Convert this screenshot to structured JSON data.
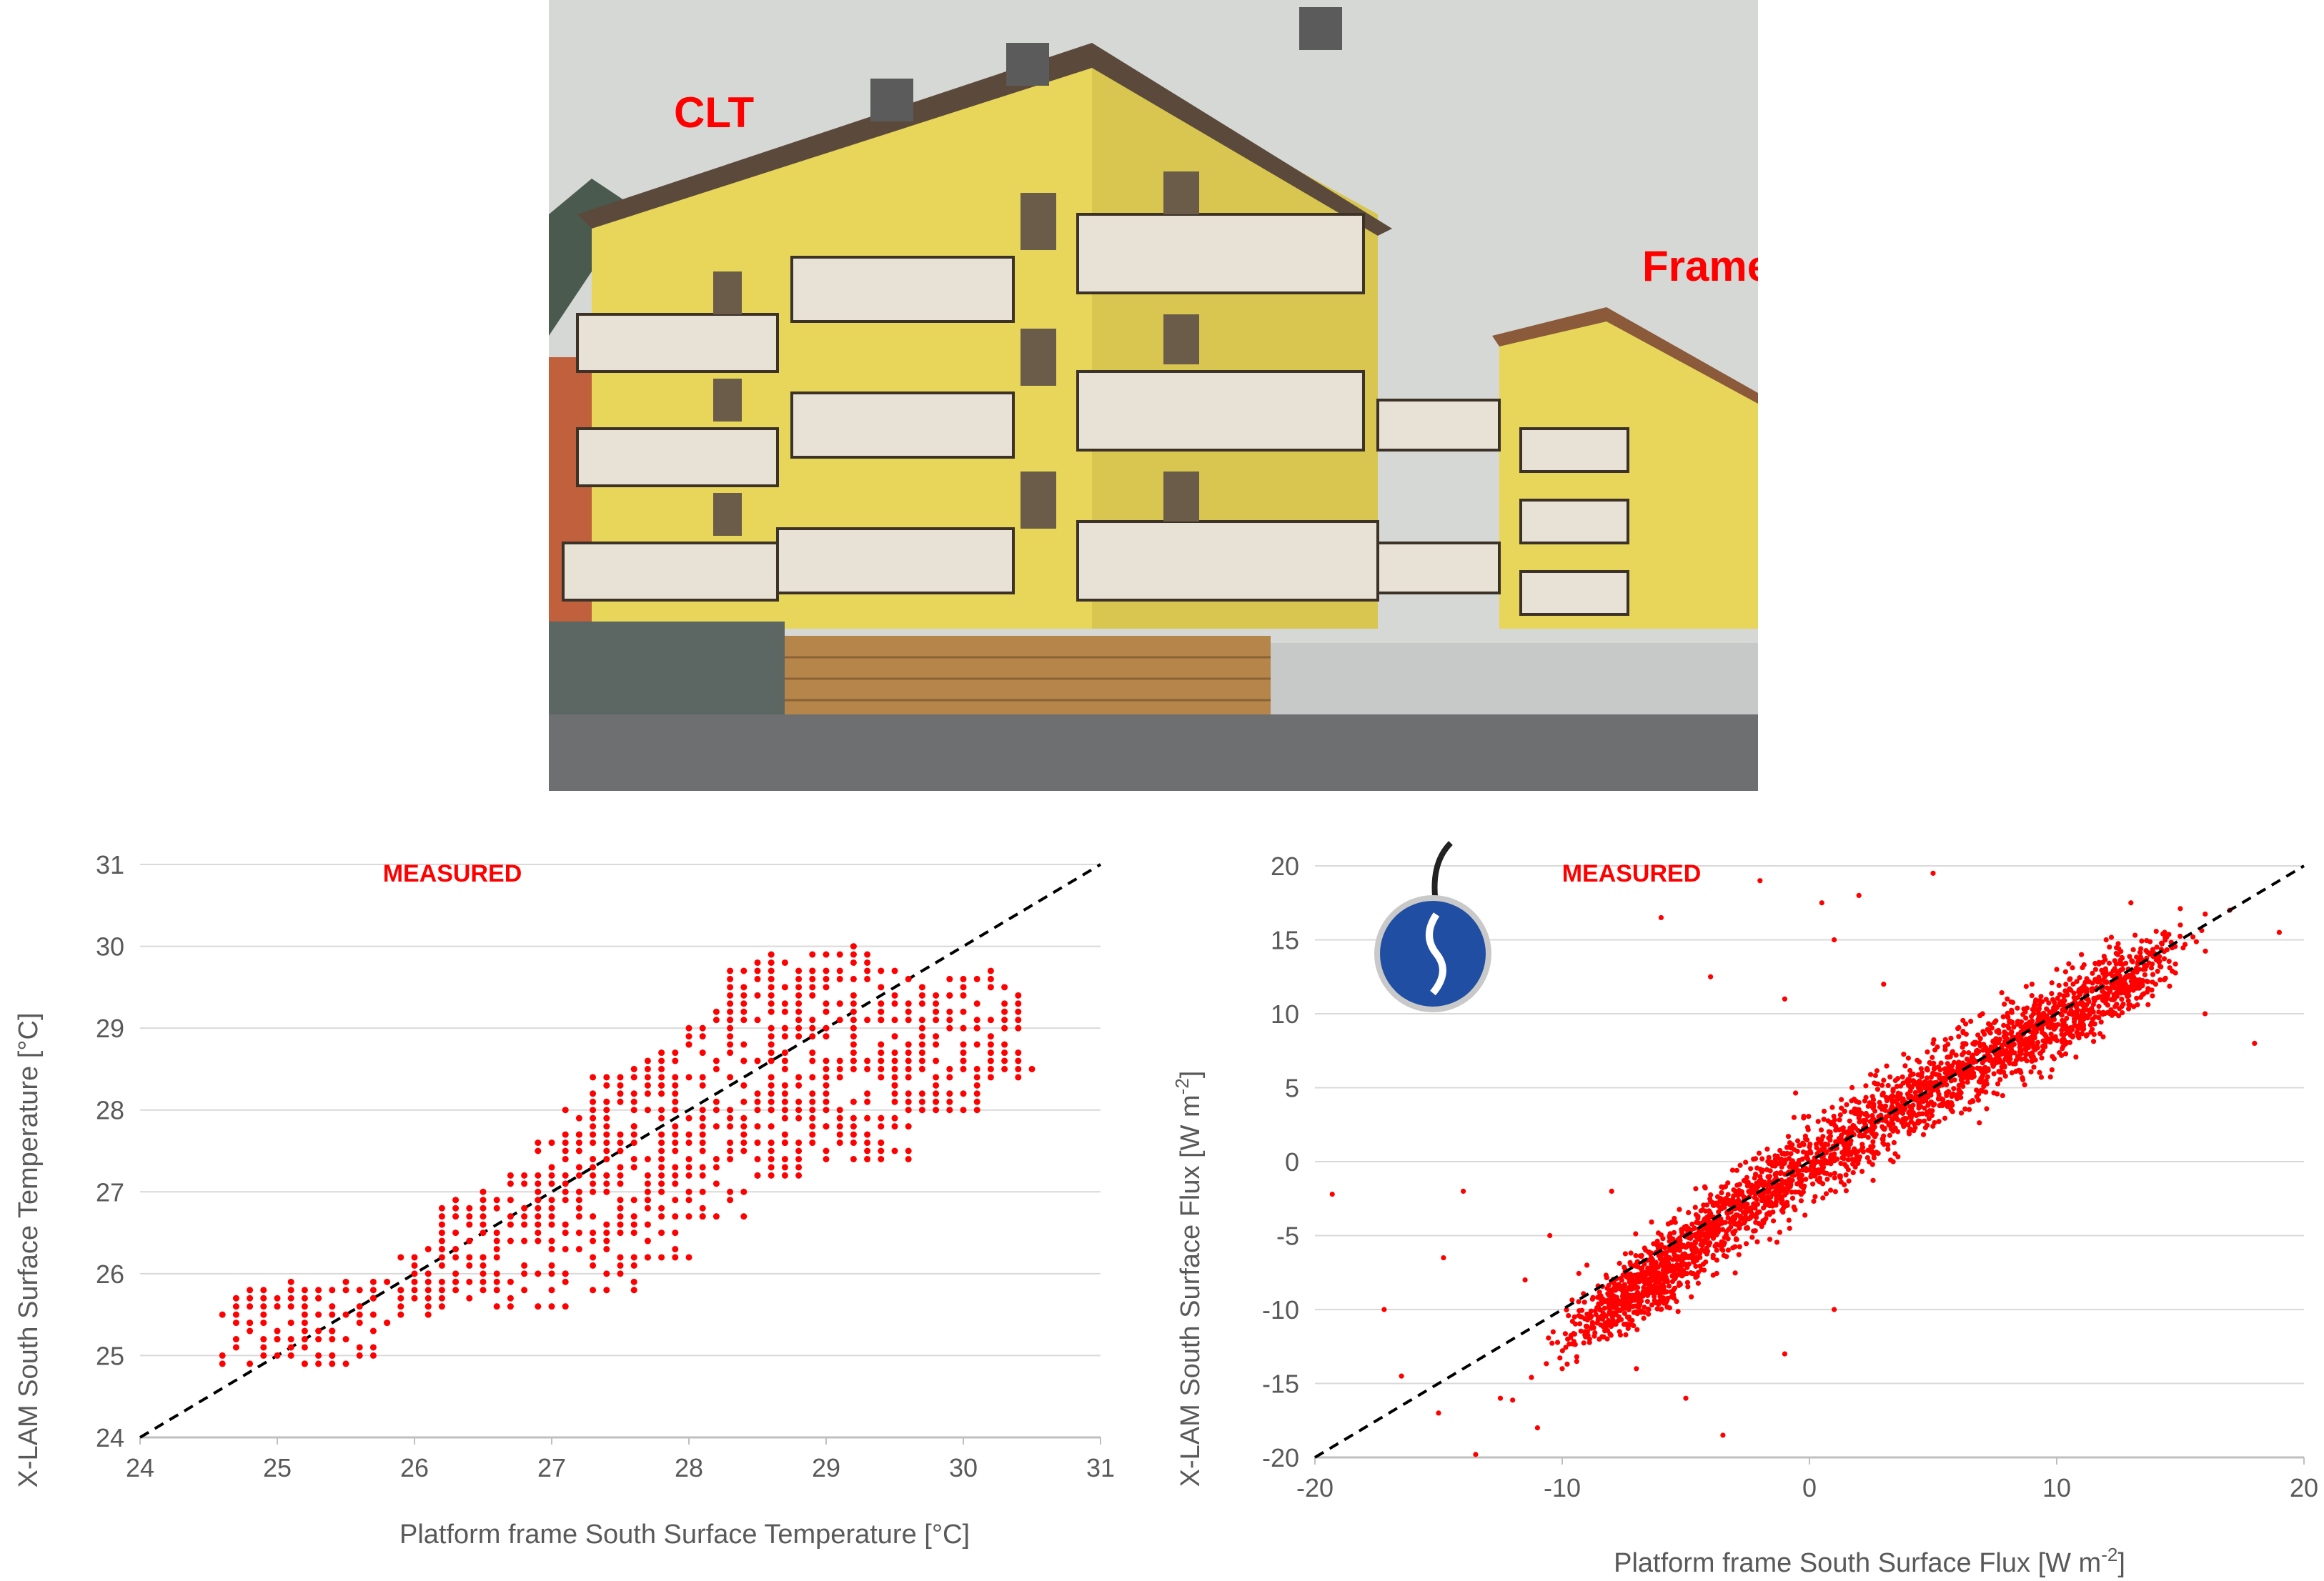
{
  "photo": {
    "labels": {
      "clt": "CLT",
      "frame": "Frame"
    },
    "colors": {
      "facade": "#e7d65a",
      "facade_shadow": "#cbb84a",
      "roof": "#5b4a3b",
      "sky": "#d6d8d5",
      "balcony": "#e7e1d6",
      "railing": "#3c3228",
      "fence_wood": "#b5854a",
      "fence_grey": "#5c6662",
      "road": "#6d6f70",
      "label": "#ff0000"
    }
  },
  "chart_data": [
    {
      "type": "scatter",
      "annotation": "MEASURED",
      "xlabel": "Platform frame South Surface Temperature [°C]",
      "ylabel": "X-LAM South Surface Temperature [°C]",
      "xlim": [
        24,
        31
      ],
      "ylim": [
        24,
        31
      ],
      "xticks": [
        "24",
        "25",
        "26",
        "27",
        "28",
        "29",
        "30",
        "31"
      ],
      "yticks": [
        "24",
        "25",
        "26",
        "27",
        "28",
        "29",
        "30",
        "31"
      ],
      "grid": "horizontal",
      "reference_line": "y = x (dashed)",
      "point_color": "#ff0000",
      "points": [
        [
          24.6,
          24.9
        ],
        [
          24.7,
          25.7
        ],
        [
          24.7,
          25.1
        ],
        [
          24.8,
          25.4
        ],
        [
          24.9,
          25.0
        ],
        [
          25.0,
          25.6
        ],
        [
          25.0,
          25.2
        ],
        [
          25.1,
          25.9
        ],
        [
          25.2,
          25.5
        ],
        [
          25.2,
          24.9
        ],
        [
          25.3,
          25.7
        ],
        [
          25.4,
          25.3
        ],
        [
          25.4,
          25.0
        ],
        [
          25.5,
          25.9
        ],
        [
          25.6,
          25.5
        ],
        [
          25.7,
          25.7
        ],
        [
          25.8,
          25.4
        ],
        [
          25.9,
          25.8
        ],
        [
          26.0,
          26.0
        ],
        [
          26.1,
          25.6
        ],
        [
          26.2,
          26.3
        ],
        [
          26.3,
          25.9
        ],
        [
          26.4,
          26.6
        ],
        [
          26.5,
          26.2
        ],
        [
          26.5,
          27.0
        ],
        [
          26.6,
          25.8
        ],
        [
          26.7,
          26.6
        ],
        [
          26.8,
          26.1
        ],
        [
          26.9,
          26.9
        ],
        [
          26.9,
          25.6
        ],
        [
          27.0,
          27.3
        ],
        [
          27.0,
          26.4
        ],
        [
          27.1,
          26.0
        ],
        [
          27.2,
          27.7
        ],
        [
          27.2,
          26.8
        ],
        [
          27.3,
          25.8
        ],
        [
          27.4,
          28.1
        ],
        [
          27.4,
          27.2
        ],
        [
          27.5,
          26.6
        ],
        [
          27.6,
          28.5
        ],
        [
          27.6,
          27.8
        ],
        [
          27.7,
          26.9
        ],
        [
          27.7,
          26.2
        ],
        [
          27.8,
          28.3
        ],
        [
          27.9,
          27.5
        ],
        [
          28.0,
          28.8
        ],
        [
          28.0,
          27.0
        ],
        [
          28.1,
          26.7
        ],
        [
          28.2,
          28.1
        ],
        [
          28.3,
          29.1
        ],
        [
          28.3,
          27.6
        ],
        [
          28.4,
          28.6
        ],
        [
          28.5,
          27.2
        ],
        [
          28.5,
          29.4
        ],
        [
          28.6,
          28.0
        ],
        [
          28.6,
          29.9
        ],
        [
          28.7,
          27.6
        ],
        [
          28.8,
          28.9
        ],
        [
          28.9,
          29.7
        ],
        [
          28.9,
          28.2
        ],
        [
          29.0,
          27.8
        ],
        [
          29.1,
          29.3
        ],
        [
          29.2,
          28.6
        ],
        [
          29.2,
          30.0
        ],
        [
          29.3,
          27.4
        ],
        [
          29.4,
          29.1
        ],
        [
          29.5,
          28.3
        ],
        [
          29.6,
          29.6
        ],
        [
          29.7,
          28.9
        ],
        [
          29.8,
          28.0
        ],
        [
          29.9,
          29.4
        ],
        [
          30.0,
          28.6
        ],
        [
          30.1,
          29.0
        ],
        [
          30.2,
          29.7
        ],
        [
          30.3,
          28.7
        ],
        [
          30.4,
          28.4
        ],
        [
          30.5,
          28.5
        ]
      ]
    },
    {
      "type": "scatter",
      "annotation": "MEASURED",
      "xlabel": "Platform frame South Surface Flux [W m-2]",
      "ylabel": "X-LAM South Surface Flux [W m-2]",
      "xlim": [
        -20,
        20
      ],
      "ylim": [
        -20,
        20
      ],
      "xticks": [
        "-20",
        "-10",
        "0",
        "10",
        "20"
      ],
      "yticks": [
        "-20",
        "-15",
        "-10",
        "-5",
        "0",
        "5",
        "10",
        "15",
        "20"
      ],
      "grid": "horizontal",
      "reference_line": "y = x (dashed)",
      "point_color": "#ff0000",
      "points": [
        [
          -19.3,
          -2.2
        ],
        [
          -17.2,
          -10.0
        ],
        [
          -16.5,
          -14.5
        ],
        [
          -15.0,
          -17.0
        ],
        [
          -14.8,
          -6.5
        ],
        [
          -14.0,
          -2.0
        ],
        [
          -13.5,
          -19.8
        ],
        [
          -12.5,
          -16.0
        ],
        [
          -11.0,
          -18.0
        ],
        [
          -10.0,
          -14.0
        ],
        [
          -9.5,
          -10.5
        ],
        [
          -9.0,
          -7.0
        ],
        [
          -8.5,
          -12.0
        ],
        [
          -8.0,
          -9.0
        ],
        [
          -7.5,
          -11.0
        ],
        [
          -7.0,
          -8.0
        ],
        [
          -6.5,
          -10.0
        ],
        [
          -6.0,
          -6.5
        ],
        [
          -5.5,
          -9.0
        ],
        [
          -5.0,
          -5.0
        ],
        [
          -4.5,
          -7.5
        ],
        [
          -4.0,
          -3.5
        ],
        [
          -3.5,
          -6.0
        ],
        [
          -3.0,
          -2.0
        ],
        [
          -2.5,
          -4.5
        ],
        [
          -2.0,
          -1.0
        ],
        [
          -1.5,
          -3.0
        ],
        [
          -1.0,
          0.5
        ],
        [
          -0.5,
          -1.5
        ],
        [
          0.0,
          1.0
        ],
        [
          0.5,
          -0.5
        ],
        [
          1.0,
          2.5
        ],
        [
          1.5,
          0.5
        ],
        [
          2.0,
          4.0
        ],
        [
          2.5,
          2.0
        ],
        [
          3.0,
          5.5
        ],
        [
          3.5,
          3.0
        ],
        [
          4.0,
          7.0
        ],
        [
          4.5,
          4.5
        ],
        [
          5.0,
          8.0
        ],
        [
          5.5,
          5.5
        ],
        [
          6.0,
          9.0
        ],
        [
          6.5,
          6.5
        ],
        [
          7.0,
          10.0
        ],
        [
          7.5,
          7.5
        ],
        [
          8.0,
          11.0
        ],
        [
          8.5,
          8.5
        ],
        [
          9.0,
          12.0
        ],
        [
          9.5,
          9.5
        ],
        [
          10.0,
          13.0
        ],
        [
          10.5,
          10.0
        ],
        [
          11.0,
          14.0
        ],
        [
          11.5,
          11.0
        ],
        [
          12.0,
          15.0
        ],
        [
          12.5,
          12.0
        ],
        [
          13.0,
          17.5
        ],
        [
          13.5,
          13.0
        ],
        [
          14.0,
          12.0
        ],
        [
          15.0,
          16.0
        ],
        [
          16.0,
          10.0
        ],
        [
          17.0,
          17.0
        ],
        [
          18.0,
          8.0
        ],
        [
          19.0,
          15.5
        ],
        [
          -2.0,
          19.0
        ],
        [
          0.5,
          17.5
        ],
        [
          2.0,
          18.0
        ],
        [
          5.0,
          19.5
        ],
        [
          -6.0,
          16.5
        ],
        [
          -4.0,
          12.5
        ],
        [
          -1.0,
          11.0
        ],
        [
          1.0,
          15.0
        ],
        [
          3.0,
          12.0
        ],
        [
          -8.0,
          -2.0
        ],
        [
          -7.0,
          -14.0
        ],
        [
          -5.0,
          -16.0
        ],
        [
          -3.5,
          -18.5
        ],
        [
          -1.0,
          -13.0
        ],
        [
          1.0,
          -10.0
        ],
        [
          -10.5,
          -5.0
        ],
        [
          -11.5,
          -8.0
        ]
      ],
      "cloud": [
        {
          "x": -7.0,
          "y": -9.0,
          "sx": 1.5,
          "sy": 1.8,
          "n": 520
        },
        {
          "x": -3.5,
          "y": -4.0,
          "sx": 2.2,
          "sy": 2.2,
          "n": 600
        },
        {
          "x": 1.5,
          "y": 1.5,
          "sx": 2.3,
          "sy": 2.5,
          "n": 520
        },
        {
          "x": 6.0,
          "y": 6.0,
          "sx": 2.2,
          "sy": 2.4,
          "n": 520
        },
        {
          "x": 10.0,
          "y": 9.5,
          "sx": 1.8,
          "sy": 2.2,
          "n": 460
        },
        {
          "x": 13.0,
          "y": 12.5,
          "sx": 1.2,
          "sy": 2.0,
          "n": 220
        }
      ]
    }
  ],
  "sensor_icon": {
    "name": "heat-flux-sensor",
    "color": "#1f4ea3"
  }
}
